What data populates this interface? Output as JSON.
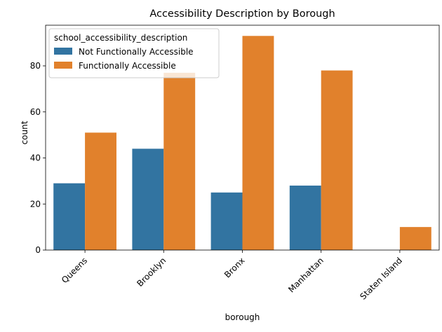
{
  "chart_data": {
    "type": "bar",
    "title": "Accessibility Description by Borough",
    "xlabel": "borough",
    "ylabel": "count",
    "categories": [
      "Queens",
      "Brooklyn",
      "Bronx",
      "Manhattan",
      "Staten Island"
    ],
    "series": [
      {
        "name": "Not Functionally Accessible",
        "color": "#3274a1",
        "values": [
          29,
          44,
          25,
          28,
          0
        ]
      },
      {
        "name": "Functionally Accessible",
        "color": "#e1812c",
        "values": [
          51,
          77,
          93,
          78,
          10
        ]
      }
    ],
    "ylim": [
      0,
      97.65
    ],
    "yticks": [
      0,
      20,
      40,
      60,
      80
    ],
    "legend": {
      "title": "school_accessibility_description",
      "placement": "top-left"
    },
    "grid": false,
    "xtick_rotation": 45
  }
}
